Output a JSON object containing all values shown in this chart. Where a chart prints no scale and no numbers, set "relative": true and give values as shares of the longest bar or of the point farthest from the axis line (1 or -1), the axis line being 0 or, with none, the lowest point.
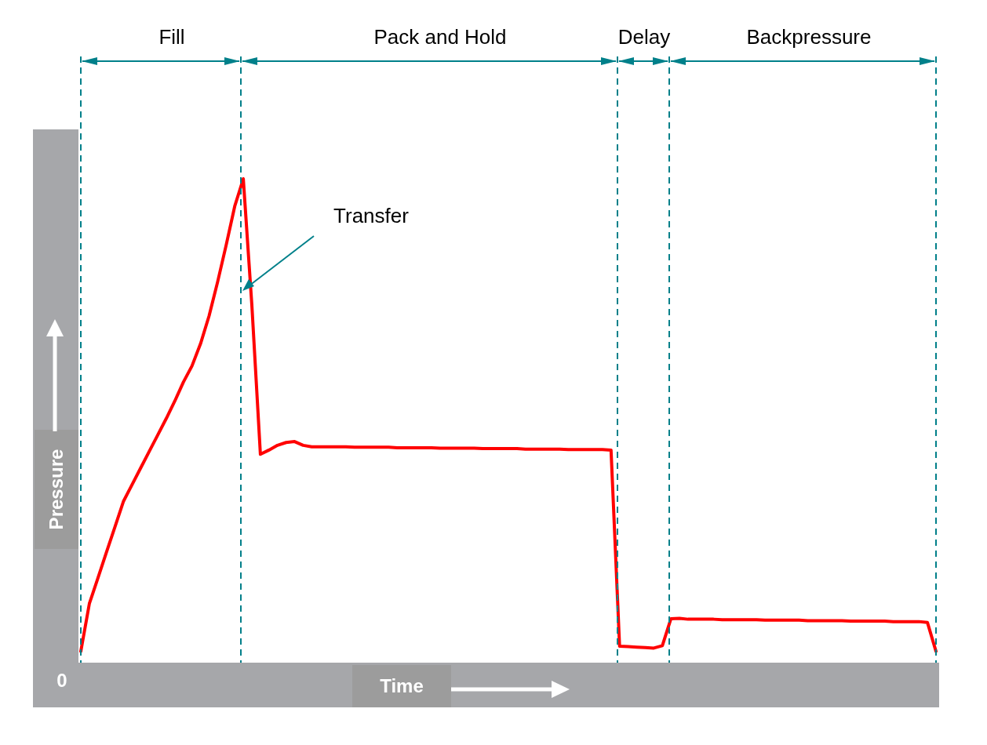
{
  "chart_data": {
    "type": "line",
    "xlabel": "Time",
    "ylabel": "Pressure",
    "relative": true,
    "grid": false,
    "legend": false,
    "marker": "none",
    "line_style": "solid",
    "categories": [
      null,
      null,
      null,
      null,
      null,
      null,
      null,
      null,
      null,
      null,
      null,
      null,
      null,
      null,
      null,
      null,
      null,
      null,
      null,
      null,
      null,
      null,
      null,
      null,
      null,
      null,
      null,
      null,
      null,
      null,
      null,
      null,
      null,
      null,
      null,
      null,
      null,
      null,
      null,
      null,
      null,
      null,
      null,
      null,
      null,
      null,
      null,
      null,
      null,
      null,
      null,
      null,
      null,
      null,
      null,
      null,
      null,
      null,
      null,
      null,
      null,
      null,
      null,
      null,
      null,
      null,
      null,
      null,
      null,
      null,
      null,
      null,
      null,
      null,
      null,
      null,
      null,
      null,
      null,
      null,
      null,
      null,
      null,
      null,
      null,
      null,
      null,
      null,
      null,
      null,
      null,
      null,
      null,
      null,
      null,
      null,
      null,
      null,
      null,
      null,
      null
    ],
    "series": [
      {
        "color": "#ff0000",
        "values": [
          0,
          0.101,
          0.155,
          0.21,
          0.264,
          0.318,
          0.353,
          0.388,
          0.423,
          0.458,
          0.493,
          0.53,
          0.57,
          0.604,
          0.651,
          0.71,
          0.782,
          0.86,
          0.942,
          1,
          0.733,
          0.417,
          0.426,
          0.436,
          0.442,
          0.444,
          0.436,
          0.433,
          0.433,
          0.433,
          0.433,
          0.433,
          0.432,
          0.432,
          0.432,
          0.432,
          0.432,
          0.431,
          0.431,
          0.431,
          0.431,
          0.431,
          0.43,
          0.43,
          0.43,
          0.43,
          0.43,
          0.429,
          0.429,
          0.429,
          0.429,
          0.429,
          0.428,
          0.428,
          0.428,
          0.428,
          0.428,
          0.427,
          0.427,
          0.427,
          0.427,
          0.427,
          0.426,
          0.011,
          0.01,
          0.009,
          0.008,
          0.007,
          0.012,
          0.069,
          0.07,
          0.068,
          0.068,
          0.068,
          0.068,
          0.067,
          0.067,
          0.067,
          0.067,
          0.067,
          0.066,
          0.066,
          0.066,
          0.066,
          0.066,
          0.065,
          0.065,
          0.065,
          0.065,
          0.065,
          0.064,
          0.064,
          0.064,
          0.064,
          0.064,
          0.063,
          0.063,
          0.063,
          0.063,
          0.061,
          0
        ]
      }
    ],
    "annotations": [
      "Fill",
      "Pack and Hold",
      "Delay",
      "Backpressure",
      "Transfer",
      "0"
    ]
  }
}
